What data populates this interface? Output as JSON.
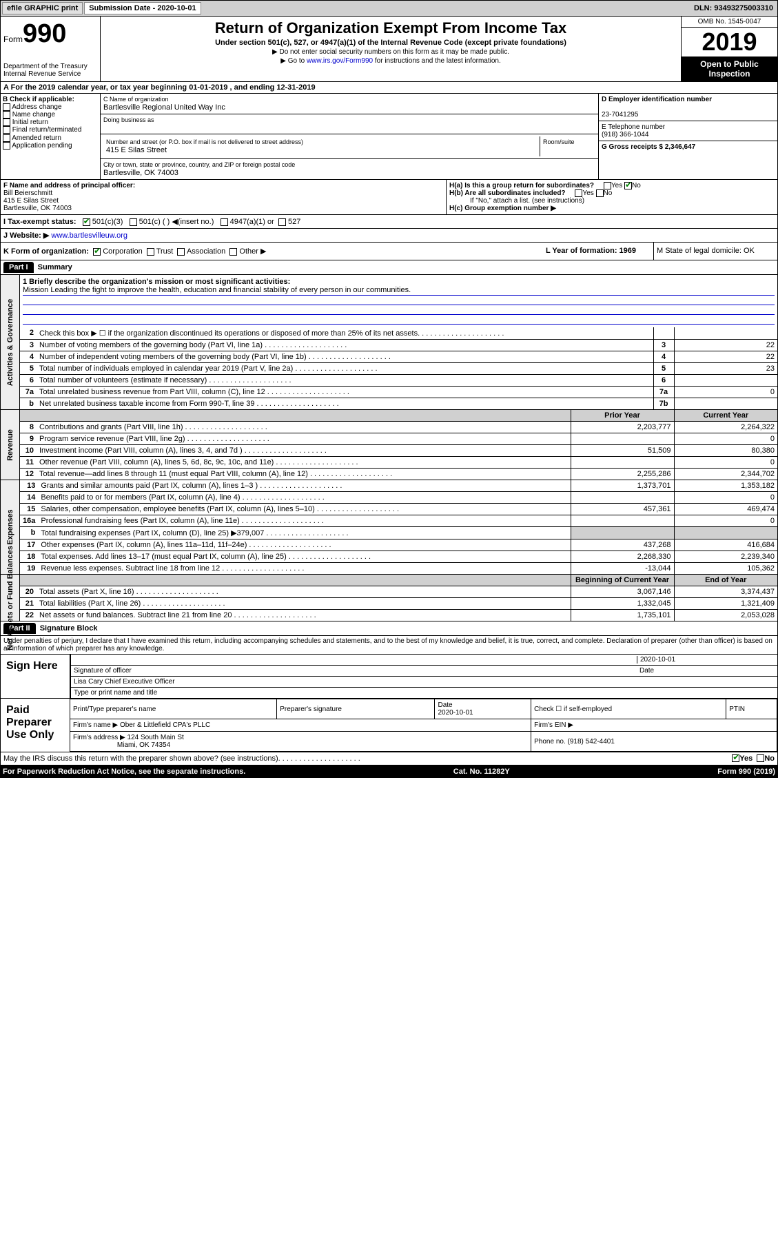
{
  "topbar": {
    "efile": "efile GRAPHIC print",
    "subdate_label": "Submission Date - 2020-10-01",
    "dln": "DLN: 93493275003310"
  },
  "header": {
    "form_label": "Form",
    "form_num": "990",
    "dept": "Department of the Treasury\nInternal Revenue Service",
    "title": "Return of Organization Exempt From Income Tax",
    "subtitle": "Under section 501(c), 527, or 4947(a)(1) of the Internal Revenue Code (except private foundations)",
    "note1": "▶ Do not enter social security numbers on this form as it may be made public.",
    "note2_pre": "▶ Go to ",
    "note2_link": "www.irs.gov/Form990",
    "note2_post": " for instructions and the latest information.",
    "omb": "OMB No. 1545-0047",
    "year": "2019",
    "open": "Open to Public Inspection"
  },
  "rowA": "A    For the 2019 calendar year, or tax year beginning 01-01-2019    , and ending 12-31-2019",
  "colB": {
    "label": "B Check if applicable:",
    "opts": [
      "Address change",
      "Name change",
      "Initial return",
      "Final return/terminated",
      "Amended return",
      "Application pending"
    ]
  },
  "colC": {
    "name_label": "C Name of organization",
    "name": "Bartlesville Regional United Way Inc",
    "dba_label": "Doing business as",
    "addr_label": "Number and street (or P.O. box if mail is not delivered to street address)",
    "addr": "415 E Silas Street",
    "room_label": "Room/suite",
    "city_label": "City or town, state or province, country, and ZIP or foreign postal code",
    "city": "Bartlesville, OK  74003"
  },
  "colDE": {
    "d_label": "D Employer identification number",
    "d_val": "23-7041295",
    "e_label": "E Telephone number",
    "e_val": "(918) 366-1044",
    "g_label": "G Gross receipts $ 2,346,647"
  },
  "rowF": {
    "label": "F  Name and address of principal officer:",
    "name": "Bill Beierschmitt",
    "addr1": "415 E Silas Street",
    "addr2": "Bartlesville, OK  74003",
    "ha": "H(a)  Is this a group return for subordinates?",
    "hb": "H(b)  Are all subordinates included?",
    "hb_note": "If \"No,\" attach a list. (see instructions)",
    "hc": "H(c)  Group exemption number ▶"
  },
  "rowI": {
    "label": "I    Tax-exempt status:",
    "opt1": "501(c)(3)",
    "opt2": "501(c) (  ) ◀(insert no.)",
    "opt3": "4947(a)(1) or",
    "opt4": "527"
  },
  "rowJ": {
    "label": "J    Website: ▶ ",
    "url": "www.bartlesvilleuw.org"
  },
  "rowK": {
    "label": "K Form of organization:",
    "opts": [
      "Corporation",
      "Trust",
      "Association",
      "Other ▶"
    ],
    "l": "L Year of formation: 1969",
    "m": "M State of legal domicile: OK"
  },
  "part1": {
    "label": "Part I",
    "title": "Summary"
  },
  "mission": {
    "q": "1  Briefly describe the organization's mission or most significant activities:",
    "text": "Mission Leading the fight to improve the health, education and financial stability of every person in our communities."
  },
  "gov_lines": [
    {
      "n": "2",
      "t": "Check this box ▶ ☐  if the organization discontinued its operations or disposed of more than 25% of its net assets.",
      "nb": "",
      "v": ""
    },
    {
      "n": "3",
      "t": "Number of voting members of the governing body (Part VI, line 1a)",
      "nb": "3",
      "v": "22"
    },
    {
      "n": "4",
      "t": "Number of independent voting members of the governing body (Part VI, line 1b)",
      "nb": "4",
      "v": "22"
    },
    {
      "n": "5",
      "t": "Total number of individuals employed in calendar year 2019 (Part V, line 2a)",
      "nb": "5",
      "v": "23"
    },
    {
      "n": "6",
      "t": "Total number of volunteers (estimate if necessary)",
      "nb": "6",
      "v": ""
    },
    {
      "n": "7a",
      "t": "Total unrelated business revenue from Part VIII, column (C), line 12",
      "nb": "7a",
      "v": "0"
    },
    {
      "n": "b",
      "t": "Net unrelated business taxable income from Form 990-T, line 39",
      "nb": "7b",
      "v": ""
    }
  ],
  "rev_hdr": {
    "py": "Prior Year",
    "cy": "Current Year"
  },
  "rev_lines": [
    {
      "n": "8",
      "t": "Contributions and grants (Part VIII, line 1h)",
      "py": "2,203,777",
      "cy": "2,264,322"
    },
    {
      "n": "9",
      "t": "Program service revenue (Part VIII, line 2g)",
      "py": "",
      "cy": "0"
    },
    {
      "n": "10",
      "t": "Investment income (Part VIII, column (A), lines 3, 4, and 7d )",
      "py": "51,509",
      "cy": "80,380"
    },
    {
      "n": "11",
      "t": "Other revenue (Part VIII, column (A), lines 5, 6d, 8c, 9c, 10c, and 11e)",
      "py": "",
      "cy": "0"
    },
    {
      "n": "12",
      "t": "Total revenue—add lines 8 through 11 (must equal Part VIII, column (A), line 12)",
      "py": "2,255,286",
      "cy": "2,344,702"
    }
  ],
  "exp_lines": [
    {
      "n": "13",
      "t": "Grants and similar amounts paid (Part IX, column (A), lines 1–3 )",
      "py": "1,373,701",
      "cy": "1,353,182"
    },
    {
      "n": "14",
      "t": "Benefits paid to or for members (Part IX, column (A), line 4)",
      "py": "",
      "cy": "0"
    },
    {
      "n": "15",
      "t": "Salaries, other compensation, employee benefits (Part IX, column (A), lines 5–10)",
      "py": "457,361",
      "cy": "469,474"
    },
    {
      "n": "16a",
      "t": "Professional fundraising fees (Part IX, column (A), line 11e)",
      "py": "",
      "cy": "0"
    },
    {
      "n": "b",
      "t": "Total fundraising expenses (Part IX, column (D), line 25) ▶379,007",
      "py": "gray",
      "cy": "gray"
    },
    {
      "n": "17",
      "t": "Other expenses (Part IX, column (A), lines 11a–11d, 11f–24e)",
      "py": "437,268",
      "cy": "416,684"
    },
    {
      "n": "18",
      "t": "Total expenses. Add lines 13–17 (must equal Part IX, column (A), line 25)",
      "py": "2,268,330",
      "cy": "2,239,340"
    },
    {
      "n": "19",
      "t": "Revenue less expenses. Subtract line 18 from line 12",
      "py": "-13,044",
      "cy": "105,362"
    }
  ],
  "na_hdr": {
    "py": "Beginning of Current Year",
    "cy": "End of Year"
  },
  "na_lines": [
    {
      "n": "20",
      "t": "Total assets (Part X, line 16)",
      "py": "3,067,146",
      "cy": "3,374,437"
    },
    {
      "n": "21",
      "t": "Total liabilities (Part X, line 26)",
      "py": "1,332,045",
      "cy": "1,321,409"
    },
    {
      "n": "22",
      "t": "Net assets or fund balances. Subtract line 21 from line 20",
      "py": "1,735,101",
      "cy": "2,053,028"
    }
  ],
  "part2": {
    "label": "Part II",
    "title": "Signature Block"
  },
  "perjury": "Under penalties of perjury, I declare that I have examined this return, including accompanying schedules and statements, and to the best of my knowledge and belief, it is true, correct, and complete. Declaration of preparer (other than officer) is based on all information of which preparer has any knowledge.",
  "sign": {
    "label": "Sign Here",
    "sig_label": "Signature of officer",
    "date": "2020-10-01",
    "date_label": "Date",
    "name": "Lisa Cary  Chief Executive Officer",
    "name_label": "Type or print name and title"
  },
  "paid": {
    "label": "Paid Preparer Use Only",
    "h1": "Print/Type preparer's name",
    "h2": "Preparer's signature",
    "h3": "Date",
    "h3v": "2020-10-01",
    "h4": "Check ☐  if self-employed",
    "h5": "PTIN",
    "firm_label": "Firm's name    ▶",
    "firm": "Ober & Littlefield CPA's PLLC",
    "ein_label": "Firm's EIN ▶",
    "addr_label": "Firm's address ▶",
    "addr": "124 South Main St",
    "addr2": "Miami, OK  74354",
    "phone_label": "Phone no. (918) 542-4401"
  },
  "discuss": "May the IRS discuss this return with the preparer shown above? (see instructions)",
  "footer": {
    "l": "For Paperwork Reduction Act Notice, see the separate instructions.",
    "m": "Cat. No. 11282Y",
    "r": "Form 990 (2019)"
  }
}
